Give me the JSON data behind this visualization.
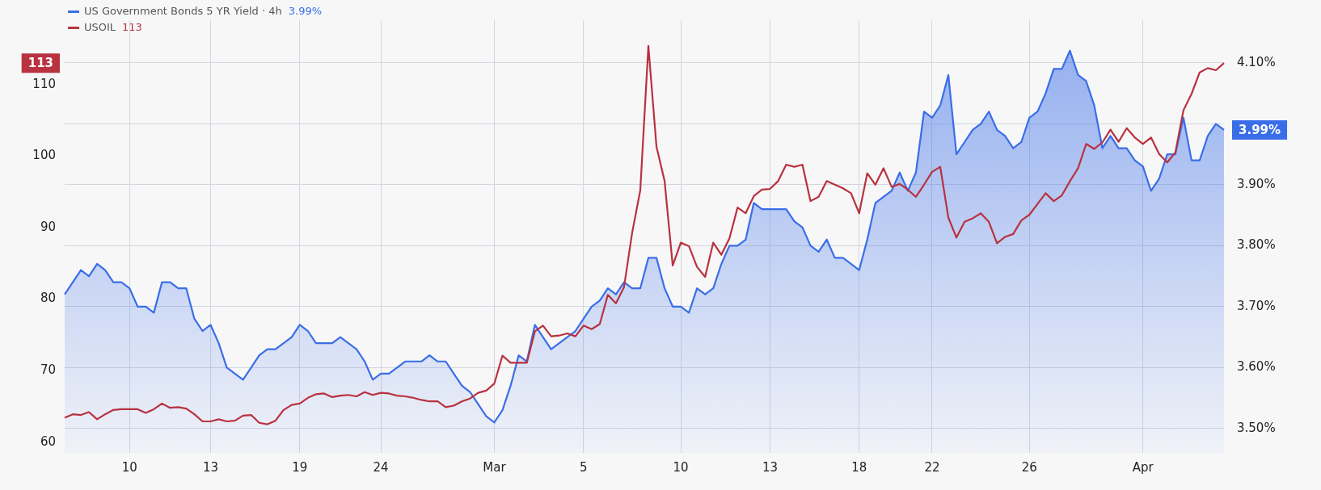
{
  "chart_data": {
    "type": "line",
    "categories": [
      null,
      null,
      null,
      null,
      null,
      null,
      null,
      null,
      "10",
      null,
      null,
      null,
      null,
      null,
      null,
      null,
      null,
      null,
      "13",
      null,
      null,
      null,
      null,
      null,
      null,
      null,
      null,
      null,
      null,
      "19",
      null,
      null,
      null,
      null,
      null,
      null,
      null,
      null,
      null,
      "24",
      null,
      null,
      null,
      null,
      null,
      null,
      null,
      null,
      null,
      null,
      null,
      null,
      null,
      "Mar",
      null,
      null,
      null,
      null,
      null,
      null,
      null,
      null,
      null,
      null,
      "5",
      null,
      null,
      null,
      null,
      null,
      null,
      null,
      null,
      null,
      null,
      null,
      "10",
      null,
      null,
      null,
      null,
      null,
      null,
      null,
      null,
      null,
      null,
      "13",
      null,
      null,
      null,
      null,
      null,
      null,
      null,
      null,
      null,
      null,
      "18",
      null,
      null,
      null,
      null,
      null,
      null,
      null,
      null,
      "22",
      null,
      null,
      null,
      null,
      null,
      null,
      null,
      null,
      null,
      null,
      null,
      "26",
      null,
      null,
      null,
      null,
      null,
      null,
      null,
      null,
      null,
      null,
      null,
      null,
      null,
      "Apr",
      null,
      null,
      null,
      null,
      null,
      null,
      null,
      null,
      null,
      null
    ],
    "series": [
      {
        "name": "US Government Bonds 5 YR Yield · 4h",
        "type": "area",
        "axis": "y2",
        "color": "#3a6ee8",
        "values": [
          3.72,
          3.74,
          3.76,
          3.75,
          3.77,
          3.76,
          3.74,
          3.74,
          3.73,
          3.7,
          3.7,
          3.69,
          3.74,
          3.74,
          3.73,
          3.73,
          3.68,
          3.66,
          3.67,
          3.64,
          3.6,
          3.59,
          3.58,
          3.6,
          3.62,
          3.63,
          3.63,
          3.64,
          3.65,
          3.67,
          3.66,
          3.64,
          3.64,
          3.64,
          3.65,
          3.64,
          3.63,
          3.61,
          3.58,
          3.59,
          3.59,
          3.6,
          3.61,
          3.61,
          3.61,
          3.62,
          3.61,
          3.61,
          3.59,
          3.57,
          3.56,
          3.54,
          3.52,
          3.51,
          3.53,
          3.57,
          3.62,
          3.61,
          3.67,
          3.65,
          3.63,
          3.64,
          3.65,
          3.66,
          3.68,
          3.7,
          3.71,
          3.73,
          3.72,
          3.74,
          3.73,
          3.73,
          3.78,
          3.78,
          3.73,
          3.7,
          3.7,
          3.69,
          3.73,
          3.72,
          3.73,
          3.77,
          3.8,
          3.8,
          3.81,
          3.87,
          3.86,
          3.86,
          3.86,
          3.86,
          3.84,
          3.83,
          3.8,
          3.79,
          3.81,
          3.78,
          3.78,
          3.77,
          3.76,
          3.81,
          3.87,
          3.88,
          3.89,
          3.92,
          3.89,
          3.92,
          4.02,
          4.01,
          4.03,
          4.08,
          3.95,
          3.97,
          3.99,
          4.0,
          4.02,
          3.99,
          3.98,
          3.96,
          3.97,
          4.01,
          4.02,
          4.05,
          4.09,
          4.09,
          4.12,
          4.08,
          4.07,
          4.03,
          3.96,
          3.98,
          3.96,
          3.96,
          3.94,
          3.93,
          3.89,
          3.91,
          3.95,
          3.95,
          4.01,
          3.94,
          3.94,
          3.98,
          4.0,
          3.99
        ]
      },
      {
        "name": "USOIL",
        "type": "line",
        "axis": "y",
        "color": "#b8323f",
        "values": [
          63.4,
          63.9,
          63.8,
          64.2,
          63.2,
          63.9,
          64.5,
          64.6,
          64.6,
          64.6,
          64.1,
          64.6,
          65.4,
          64.8,
          64.9,
          64.7,
          63.9,
          62.9,
          62.9,
          63.2,
          62.9,
          63.0,
          63.7,
          63.8,
          62.7,
          62.5,
          63.0,
          64.5,
          65.2,
          65.4,
          66.2,
          66.7,
          66.8,
          66.3,
          66.5,
          66.6,
          66.4,
          67.0,
          66.6,
          66.9,
          66.8,
          66.5,
          66.4,
          66.2,
          65.9,
          65.7,
          65.7,
          64.9,
          65.1,
          65.7,
          66.1,
          66.9,
          67.2,
          68.2,
          72.1,
          71.1,
          71.1,
          71.1,
          75.5,
          76.3,
          74.8,
          74.9,
          75.2,
          74.8,
          76.3,
          75.8,
          76.5,
          80.6,
          79.4,
          81.7,
          89.3,
          95.2,
          115.4,
          101.3,
          96.5,
          84.7,
          87.9,
          87.4,
          84.5,
          83.1,
          87.9,
          86.2,
          88.5,
          92.8,
          92.0,
          94.4,
          95.3,
          95.4,
          96.5,
          98.8,
          98.5,
          98.8,
          93.7,
          94.3,
          96.5,
          96.0,
          95.5,
          94.8,
          92.0,
          97.6,
          96.0,
          98.3,
          95.7,
          96.1,
          95.3,
          94.3,
          96.0,
          97.8,
          98.5,
          91.4,
          88.6,
          90.8,
          91.3,
          92.0,
          90.8,
          87.8,
          88.7,
          89.1,
          91.0,
          91.8,
          93.3,
          94.8,
          93.7,
          94.5,
          96.5,
          98.3,
          101.7,
          101.0,
          101.9,
          103.7,
          102.0,
          103.9,
          102.6,
          101.7,
          102.6,
          100.3,
          99.1,
          100.5,
          106.4,
          108.7,
          111.7,
          112.3,
          112.0,
          113
        ]
      }
    ],
    "ylim": [
      58.5,
      119
    ],
    "yticks": [
      60,
      70,
      80,
      90,
      100,
      110
    ],
    "y2lim": [
      3.46,
      4.17
    ],
    "y2ticks": [
      {
        "value": 3.5,
        "label": "3.50%"
      },
      {
        "value": 3.6,
        "label": "3.60%"
      },
      {
        "value": 3.7,
        "label": "3.70%"
      },
      {
        "value": 3.8,
        "label": "3.80%"
      },
      {
        "value": 3.9,
        "label": "3.90%"
      },
      {
        "value": 4.0,
        "label": null
      },
      {
        "value": 4.1,
        "label": "4.10%"
      }
    ],
    "annotations": [
      "3.99%",
      "113"
    ],
    "grid": true,
    "legend": "top left",
    "marker": "none"
  }
}
